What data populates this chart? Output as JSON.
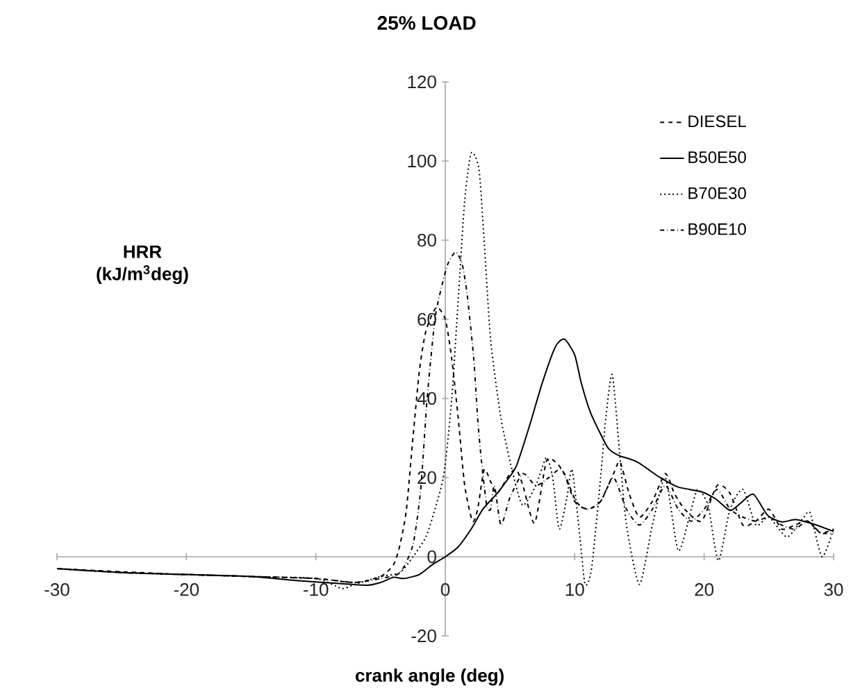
{
  "chart_data": {
    "type": "line",
    "title": "25% LOAD",
    "xlabel": "crank angle (deg)",
    "ylabel": "HRR (kJ/m$^{3}$deg)",
    "xlim": [
      -30,
      30
    ],
    "ylim": [
      -20,
      120
    ],
    "xticks": [
      -30,
      -20,
      -10,
      0,
      10,
      20,
      30
    ],
    "yticks": [
      -20,
      0,
      20,
      40,
      60,
      80,
      100,
      120
    ],
    "grid": false,
    "legend": "top right",
    "marker": "none",
    "series": [
      {
        "name": "DIESEL",
        "color": "#000000",
        "line_style": "dashed",
        "x": [
          -30,
          -25,
          -20,
          -15,
          -10,
          -7,
          -5,
          -4,
          -3.5,
          -3,
          -2.5,
          -2,
          -1.5,
          -0.7,
          0,
          0.5,
          1,
          1.5,
          2.1,
          2.5,
          3,
          3.5,
          4,
          5,
          5.5,
          6,
          6.9,
          7.8,
          8.5,
          9.2,
          10.1,
          11,
          12,
          13,
          13.5,
          14.2,
          15,
          16,
          17,
          17.7,
          18.5,
          19.8,
          21,
          22,
          23,
          24,
          25,
          26,
          27,
          28,
          29,
          30
        ],
        "values": [
          -3,
          -3.8,
          -4.5,
          -5,
          -5.5,
          -6.5,
          -5,
          -2,
          3,
          12,
          30,
          47,
          57,
          63,
          60,
          50,
          35,
          18,
          9,
          12,
          22,
          19,
          16,
          21,
          22,
          18,
          8.5,
          24,
          24,
          21,
          14,
          12,
          14,
          21,
          24,
          16,
          10,
          14,
          21,
          16,
          12,
          9,
          18,
          16,
          8,
          9,
          12,
          7,
          8,
          9,
          6,
          7
        ]
      },
      {
        "name": "B50E50",
        "color": "#000000",
        "line_style": "solid",
        "x": [
          -30,
          -25,
          -20,
          -15,
          -11.5,
          -8,
          -6,
          -5,
          -4,
          -3.2,
          -2,
          -1,
          0,
          1,
          2,
          2.9,
          4,
          4.7,
          5.5,
          6.5,
          7.5,
          8.5,
          9.2,
          10,
          10.5,
          11.2,
          12,
          12.6,
          13.4,
          14.8,
          16.6,
          18,
          19.8,
          20.9,
          22,
          22.8,
          23.8,
          24.9,
          26,
          27.1,
          28.5,
          30
        ],
        "values": [
          -3,
          -4,
          -4.5,
          -5,
          -6,
          -6.8,
          -7.2,
          -6.5,
          -5.2,
          -5.5,
          -4.5,
          -2,
          0,
          2.5,
          7,
          12,
          16,
          19,
          23,
          33,
          44,
          53,
          55,
          51,
          44,
          36.6,
          31,
          27.4,
          25.6,
          24,
          20,
          17.6,
          16.4,
          14.6,
          11.7,
          13.5,
          15.8,
          10.5,
          8.8,
          9.4,
          8.2,
          6.4
        ]
      },
      {
        "name": "B70E30",
        "color": "#000000",
        "line_style": "dotted",
        "x": [
          -30,
          -25,
          -20,
          -15,
          -10,
          -8,
          -7,
          -5,
          -3.5,
          -2.5,
          -1.5,
          -0.8,
          -0.1,
          0.5,
          1,
          1.5,
          2.0,
          2.6,
          3.0,
          3.5,
          4.3,
          5.3,
          6,
          7,
          7.8,
          8.3,
          8.8,
          9.4,
          9.8,
          10.4,
          10.8,
          11.3,
          12,
          12.4,
          12.9,
          13.5,
          14,
          15,
          16,
          17,
          18,
          19,
          19.5,
          20.3,
          21.1,
          22,
          23,
          24,
          25,
          26.4,
          27.7,
          28.2,
          29.1,
          30
        ],
        "values": [
          -3,
          -4,
          -4.5,
          -5,
          -5.5,
          -8,
          -7,
          -5,
          -4,
          0,
          5,
          12,
          21,
          40,
          65,
          90,
          102,
          98,
          80,
          55,
          35,
          20,
          13,
          18,
          25,
          20,
          7,
          15,
          22,
          5,
          -7,
          -3,
          20,
          35,
          46,
          25,
          8,
          -7,
          8,
          20,
          1.5,
          12,
          17,
          13,
          -1,
          12,
          17,
          8,
          10,
          5,
          10,
          11,
          0,
          7
        ]
      },
      {
        "name": "B90E10",
        "color": "#000000",
        "line_style": "dashdot",
        "x": [
          -30,
          -25,
          -20,
          -15,
          -10,
          -7,
          -5,
          -3.5,
          -2.5,
          -1.9,
          -1.4,
          -0.8,
          -0.3,
          0.2,
          0.8,
          1.3,
          1.7,
          2.2,
          2.5,
          2.8,
          3.2,
          3.5,
          3.8,
          4.3,
          5,
          6,
          7,
          8,
          9,
          10,
          11,
          12,
          13,
          14,
          15,
          16,
          17,
          18,
          19,
          20,
          21,
          22,
          23,
          24,
          25,
          26,
          27,
          28,
          29,
          30
        ],
        "values": [
          -3,
          -4,
          -4.5,
          -5,
          -5.5,
          -6.5,
          -5.5,
          -4,
          3,
          17,
          40,
          60,
          68,
          74,
          77,
          74,
          66,
          50,
          35,
          24,
          13,
          12,
          18,
          8,
          15,
          21,
          18,
          20,
          22,
          14,
          12,
          14,
          20,
          12,
          8,
          12,
          18,
          12,
          9,
          12,
          17,
          12,
          10,
          9,
          10,
          8,
          7,
          9,
          6,
          6
        ]
      }
    ]
  }
}
